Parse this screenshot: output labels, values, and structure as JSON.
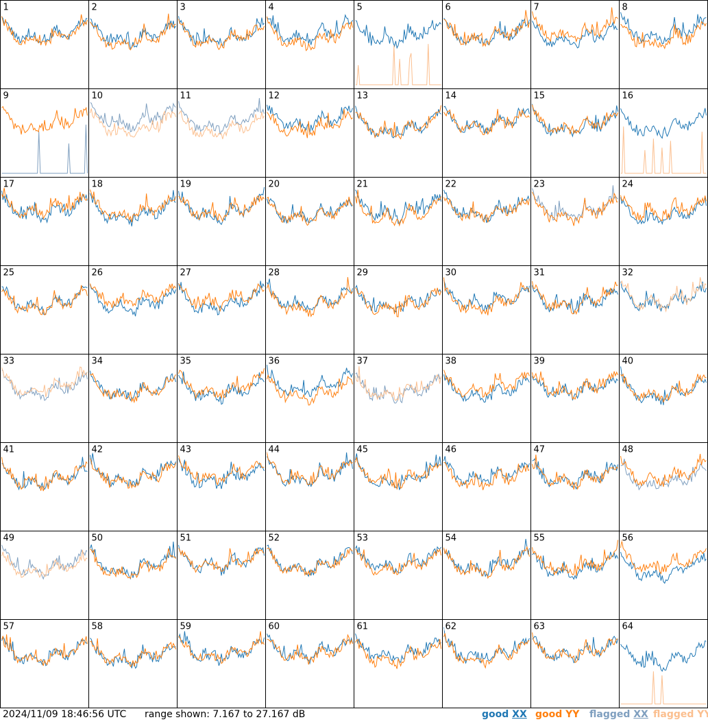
{
  "chart_data": {
    "type": "line",
    "layout": "8x8 small-multiples grid of per-antenna spectra",
    "panels": [
      {
        "id": "1",
        "good_xx": true,
        "good_yy": true
      },
      {
        "id": "2",
        "good_xx": true,
        "good_yy": true
      },
      {
        "id": "3",
        "good_xx": true,
        "good_yy": true
      },
      {
        "id": "4",
        "good_xx": true,
        "good_yy": true
      },
      {
        "id": "5",
        "good_xx": true,
        "good_yy": false,
        "flagged_yy": true
      },
      {
        "id": "6",
        "good_xx": true,
        "good_yy": true
      },
      {
        "id": "7",
        "good_xx": true,
        "good_yy": true
      },
      {
        "id": "8",
        "good_xx": true,
        "good_yy": true
      },
      {
        "id": "9",
        "flagged_xx": true,
        "good_yy": true
      },
      {
        "id": "10",
        "flagged_xx": true,
        "flagged_yy": true
      },
      {
        "id": "11",
        "flagged_xx": true,
        "flagged_yy": true
      },
      {
        "id": "12",
        "good_xx": true,
        "good_yy": true
      },
      {
        "id": "13",
        "good_xx": true,
        "good_yy": true
      },
      {
        "id": "14",
        "good_xx": true,
        "good_yy": true
      },
      {
        "id": "15",
        "good_xx": true,
        "good_yy": true
      },
      {
        "id": "16",
        "good_xx": true,
        "flagged_yy": true
      },
      {
        "id": "17",
        "good_xx": true,
        "good_yy": true
      },
      {
        "id": "18",
        "good_xx": true,
        "good_yy": true
      },
      {
        "id": "19",
        "good_xx": true,
        "good_yy": true
      },
      {
        "id": "20",
        "good_xx": true,
        "good_yy": true
      },
      {
        "id": "21",
        "good_xx": true,
        "good_yy": true
      },
      {
        "id": "22",
        "good_xx": true,
        "good_yy": true
      },
      {
        "id": "23",
        "flagged_xx": true,
        "good_yy": true
      },
      {
        "id": "24",
        "good_xx": true,
        "good_yy": true
      },
      {
        "id": "25",
        "good_xx": true,
        "good_yy": true
      },
      {
        "id": "26",
        "good_xx": true,
        "good_yy": true
      },
      {
        "id": "27",
        "good_xx": true,
        "good_yy": true
      },
      {
        "id": "28",
        "good_xx": true,
        "good_yy": true
      },
      {
        "id": "29",
        "good_xx": true,
        "good_yy": true
      },
      {
        "id": "30",
        "good_xx": true,
        "good_yy": true
      },
      {
        "id": "31",
        "good_xx": true,
        "good_yy": true
      },
      {
        "id": "32",
        "good_xx": true,
        "flagged_yy": true
      },
      {
        "id": "33",
        "flagged_xx": true,
        "flagged_yy": true
      },
      {
        "id": "34",
        "good_xx": true,
        "good_yy": true
      },
      {
        "id": "35",
        "good_xx": true,
        "good_yy": true
      },
      {
        "id": "36",
        "good_xx": true,
        "good_yy": true
      },
      {
        "id": "37",
        "flagged_xx": true,
        "flagged_yy": true
      },
      {
        "id": "38",
        "good_xx": true,
        "good_yy": true
      },
      {
        "id": "39",
        "good_xx": true,
        "good_yy": true
      },
      {
        "id": "40",
        "good_xx": true,
        "good_yy": true
      },
      {
        "id": "41",
        "good_xx": true,
        "good_yy": true
      },
      {
        "id": "42",
        "good_xx": true,
        "good_yy": true
      },
      {
        "id": "43",
        "good_xx": true,
        "good_yy": true
      },
      {
        "id": "44",
        "good_xx": true,
        "good_yy": true
      },
      {
        "id": "45",
        "good_xx": true,
        "good_yy": true
      },
      {
        "id": "46",
        "good_xx": true,
        "good_yy": true
      },
      {
        "id": "47",
        "good_xx": true,
        "good_yy": true
      },
      {
        "id": "48",
        "flagged_xx": true,
        "good_yy": true
      },
      {
        "id": "49",
        "flagged_xx": true,
        "flagged_yy": true
      },
      {
        "id": "50",
        "good_xx": true,
        "good_yy": true
      },
      {
        "id": "51",
        "good_xx": true,
        "good_yy": true
      },
      {
        "id": "52",
        "good_xx": true,
        "good_yy": true
      },
      {
        "id": "53",
        "good_xx": true,
        "good_yy": true
      },
      {
        "id": "54",
        "good_xx": true,
        "good_yy": true
      },
      {
        "id": "55",
        "good_xx": true,
        "good_yy": true
      },
      {
        "id": "56",
        "good_xx": true,
        "good_yy": true
      },
      {
        "id": "57",
        "good_xx": true,
        "good_yy": true
      },
      {
        "id": "58",
        "good_xx": true,
        "good_yy": true
      },
      {
        "id": "59",
        "good_xx": true,
        "good_yy": true
      },
      {
        "id": "60",
        "good_xx": true,
        "good_yy": true
      },
      {
        "id": "61",
        "good_xx": true,
        "good_yy": true
      },
      {
        "id": "62",
        "good_xx": true,
        "good_yy": true
      },
      {
        "id": "63",
        "good_xx": true,
        "good_yy": true
      },
      {
        "id": "64",
        "good_xx": true,
        "flagged_yy": true
      }
    ],
    "range_db": [
      7.167,
      27.167
    ],
    "legend": [
      "good XX",
      "good YY",
      "flagged XX",
      "flagged YY"
    ],
    "legend_placement": "bottom-right"
  },
  "colors": {
    "good_xx": "#1f77b4",
    "good_yy": "#ff7f0e",
    "flagged_xx": "#7f9fbf",
    "flagged_yy": "#fbbf8f",
    "border": "#000000"
  },
  "footer": {
    "timestamp": "2024/11/09 18:46:56 UTC",
    "range_text": "range shown: 7.167 to 27.167 dB",
    "legend_good_xx_word": "good",
    "legend_good_xx_pol": "XX",
    "legend_good_yy": "good YY",
    "legend_flagged_xx_word": "flagged",
    "legend_flagged_xx_pol": "XX",
    "legend_flagged_yy": "flagged YY"
  }
}
